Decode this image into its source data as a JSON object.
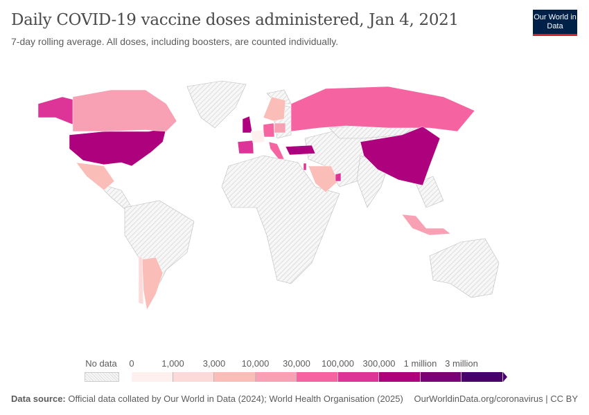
{
  "header": {
    "title": "Daily COVID-19 vaccine doses administered, Jan 4, 2021",
    "subtitle": "7-day rolling average. All doses, including boosters, are counted individually.",
    "logo": "Our World in Data"
  },
  "legend": {
    "no_data": "No data",
    "bins": [
      {
        "label": "0",
        "color": "#fdf0ee"
      },
      {
        "label": "1,000",
        "color": "#fcdada"
      },
      {
        "label": "3,000",
        "color": "#fbbdb8"
      },
      {
        "label": "10,000",
        "color": "#f8a0b4"
      },
      {
        "label": "30,000",
        "color": "#f564a0"
      },
      {
        "label": "100,000",
        "color": "#dc3597"
      },
      {
        "label": "300,000",
        "color": "#ae017e"
      },
      {
        "label": "1 million",
        "color": "#7a0177"
      },
      {
        "label": "3 million",
        "color": "#49006a"
      }
    ],
    "end_color": "#49006a"
  },
  "countries": [
    {
      "name": "United States",
      "bin": 6
    },
    {
      "name": "Alaska",
      "bin": 5
    },
    {
      "name": "Canada",
      "bin": 3
    },
    {
      "name": "Mexico",
      "bin": 2
    },
    {
      "name": "Argentina",
      "bin": 2
    },
    {
      "name": "Chile",
      "bin": 1
    },
    {
      "name": "United Kingdom",
      "bin": 6
    },
    {
      "name": "Spain",
      "bin": 5
    },
    {
      "name": "Germany",
      "bin": 4
    },
    {
      "name": "Italy",
      "bin": 4
    },
    {
      "name": "France",
      "bin": 0
    },
    {
      "name": "Poland",
      "bin": 3
    },
    {
      "name": "Nordics",
      "bin": 2
    },
    {
      "name": "Russia",
      "bin": 4
    },
    {
      "name": "Turkey",
      "bin": 6
    },
    {
      "name": "Israel",
      "bin": 5
    },
    {
      "name": "Saudi Arabia",
      "bin": 2
    },
    {
      "name": "UAE",
      "bin": 5
    },
    {
      "name": "China",
      "bin": 6
    },
    {
      "name": "Indonesia",
      "bin": 3
    }
  ],
  "footer": {
    "source_label": "Data source:",
    "source": "Official data collated by Our World in Data (2024); World Health Organisation (2025)",
    "link": "OurWorldinData.org/coronavirus | CC BY"
  }
}
